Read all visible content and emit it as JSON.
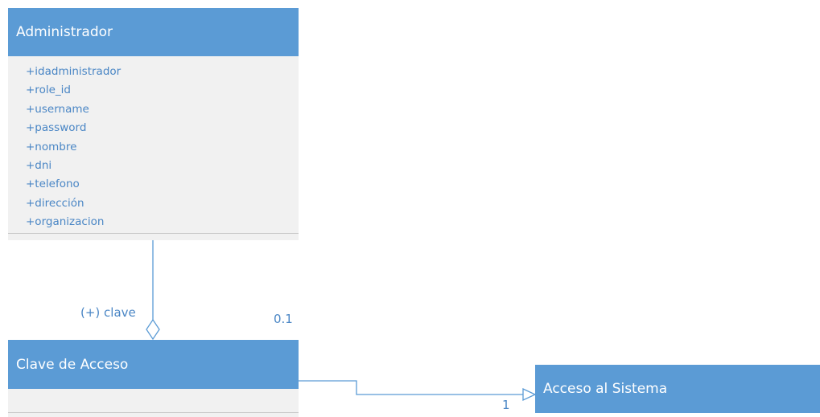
{
  "classes": {
    "administrador": {
      "name": "Administrador",
      "attributes": [
        "+idadministrador",
        "+role_id",
        "+username",
        "+password",
        "+nombre",
        "+dni",
        "+telefono",
        "+dirección",
        "+organizacion"
      ]
    },
    "clave_acceso": {
      "name": "Clave de Acceso"
    },
    "acceso_sistema": {
      "name": "Acceso al Sistema"
    }
  },
  "relations": {
    "aggregation": {
      "role": "(+) clave",
      "multiplicity": "0.1"
    },
    "generalization": {
      "multiplicity": "1"
    }
  },
  "colors": {
    "header": "#5b9bd5",
    "text": "#4a86c5",
    "body": "#f1f1f1"
  }
}
